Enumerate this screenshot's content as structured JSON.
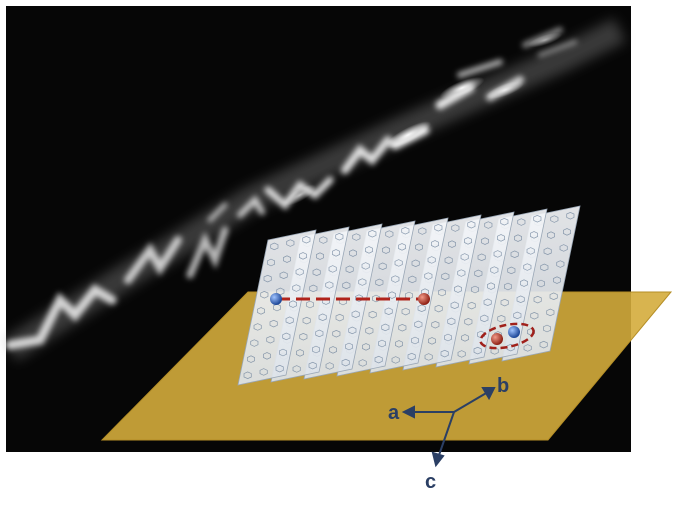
{
  "figure": {
    "background": {
      "color": "#060606",
      "glow_color": "#ffffff"
    },
    "substrate": {
      "color": "#d4ac3c",
      "edge_color": "#b58e26"
    },
    "sheets": {
      "count": 9,
      "color": "#e9edf2",
      "edge_color": "#9aa7b6",
      "lattice_color": "#6a7f98"
    },
    "carriers": {
      "electron_color": "#2e5fb0",
      "hole_color": "#b33222",
      "separation_line_color": "#b0241b",
      "exciton_ring_color": "#a0201b"
    },
    "axes": {
      "color": "#2b3f64",
      "labels": {
        "a": "a",
        "b": "b",
        "c": "c"
      }
    }
  }
}
